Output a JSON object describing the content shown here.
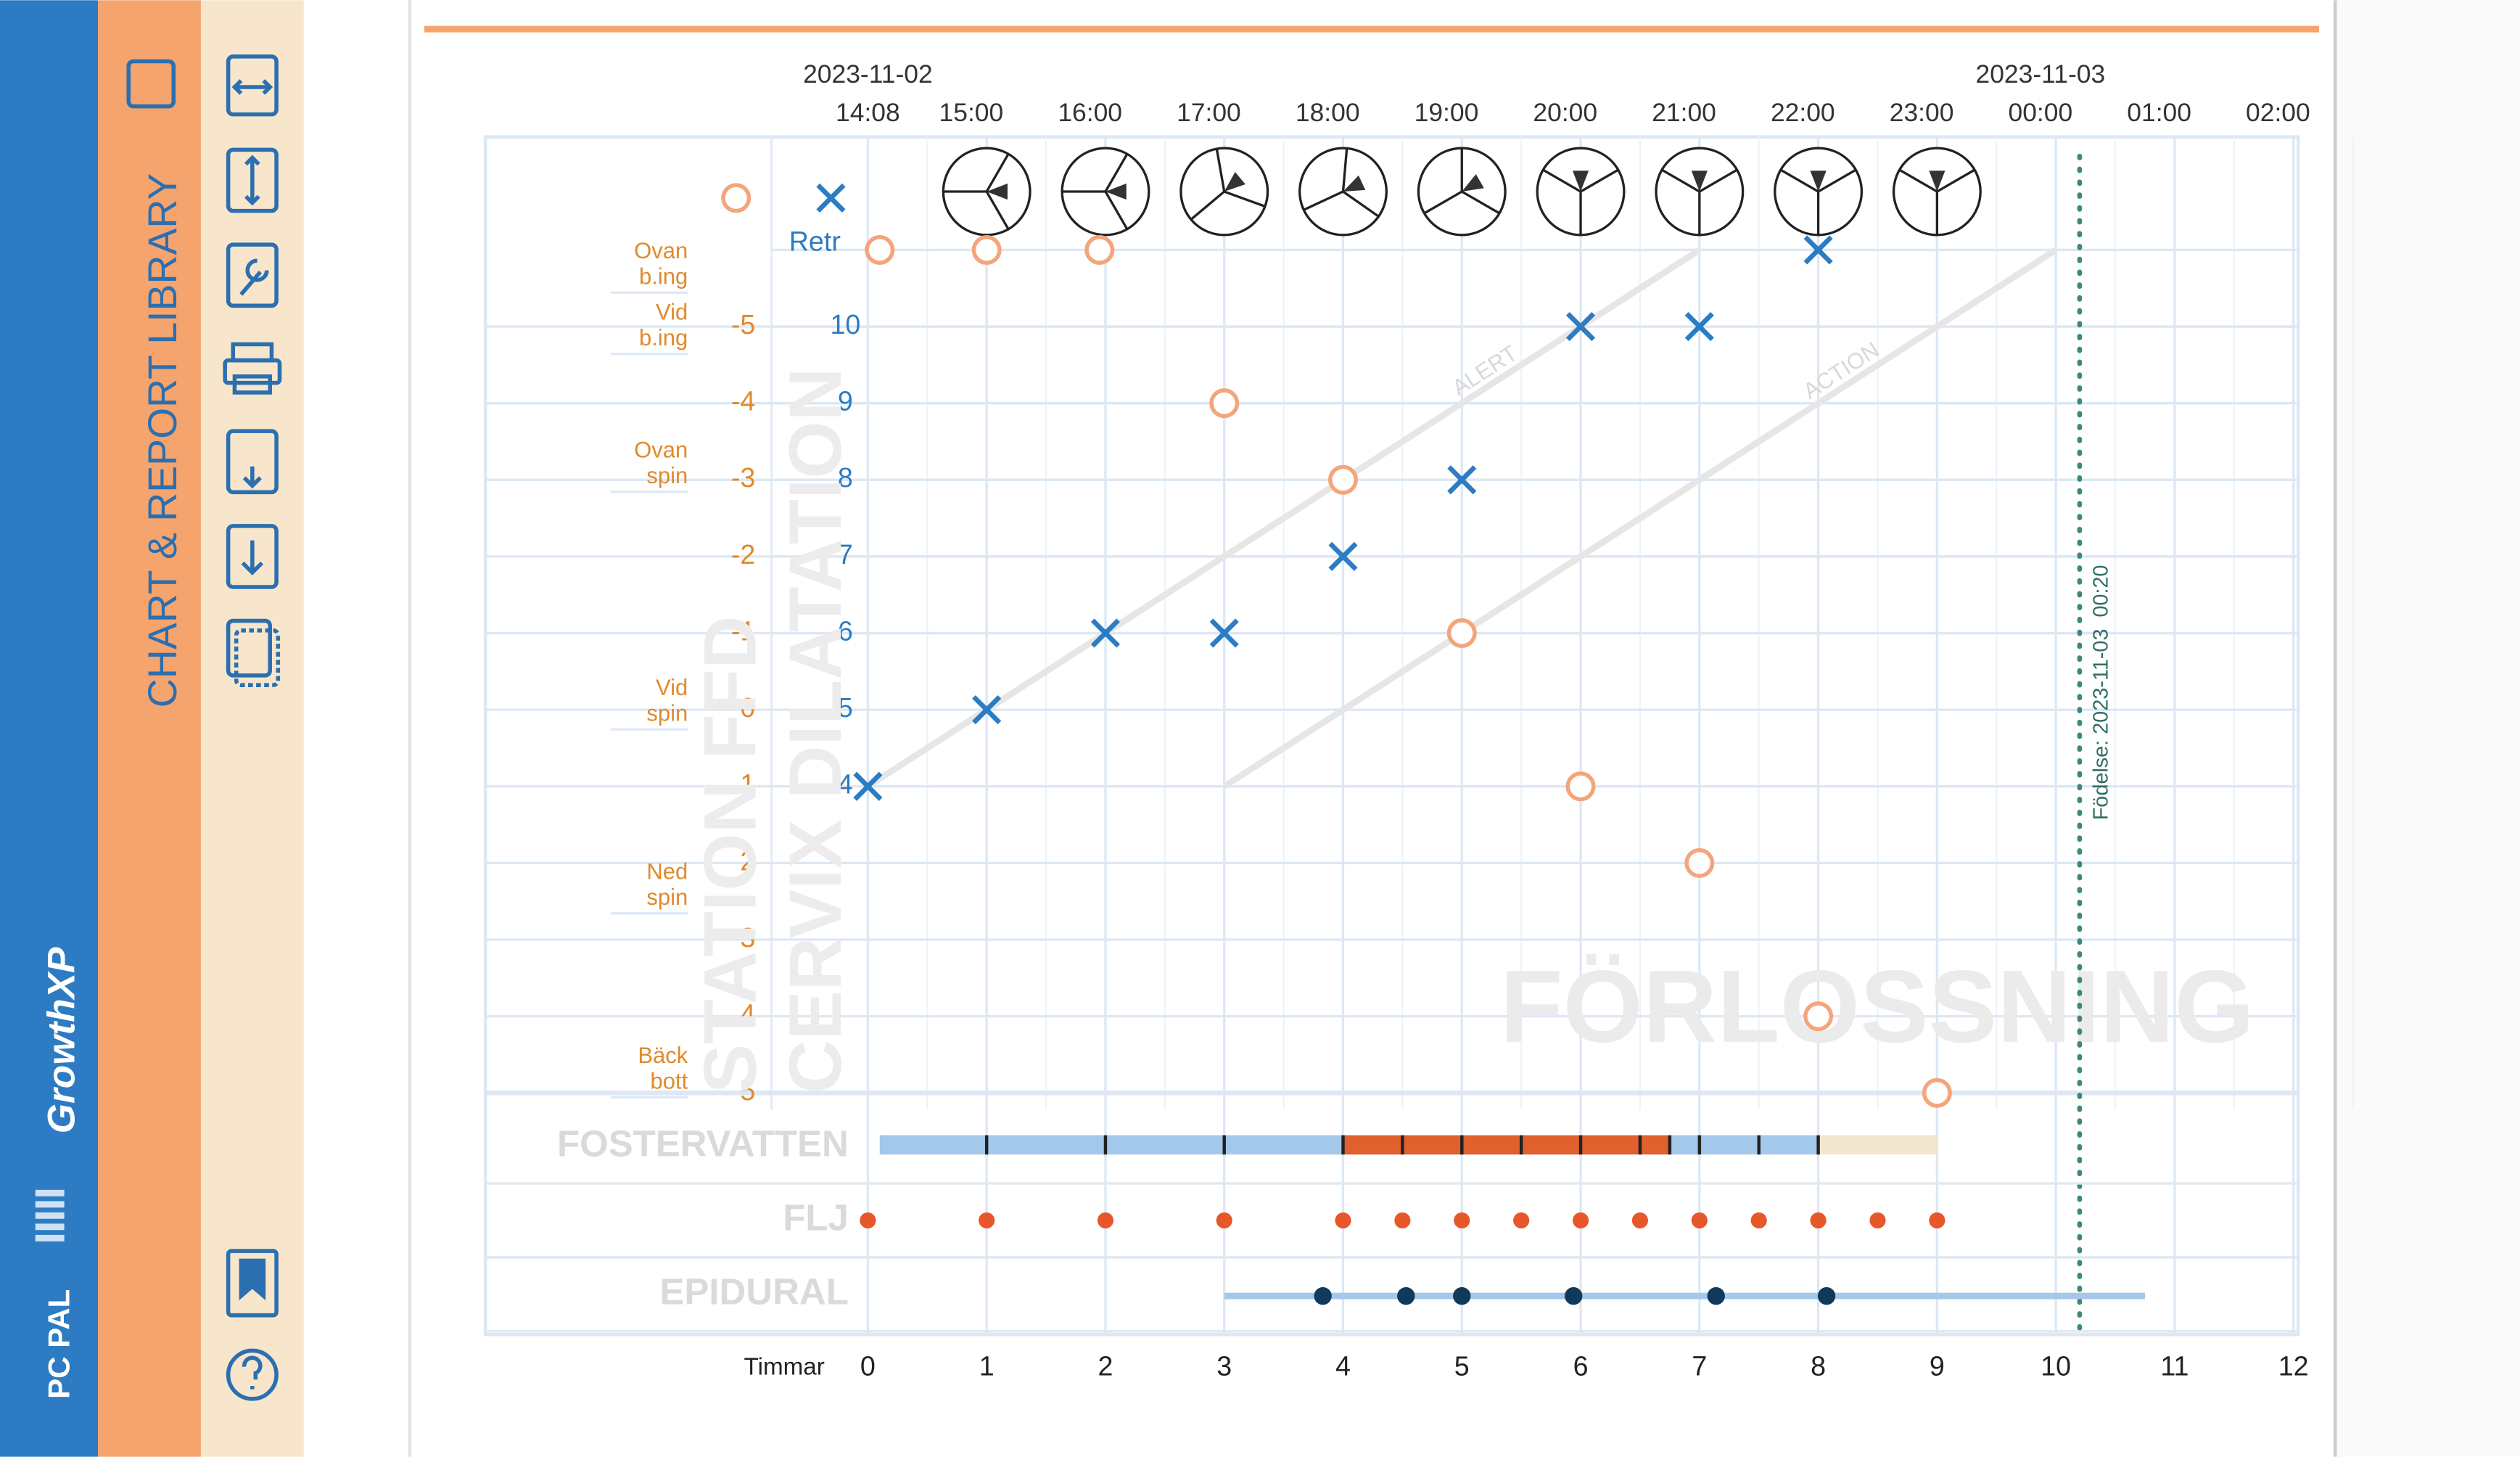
{
  "sidebar": {
    "brand": "PC PAL",
    "product": "GrowthXP",
    "title": "CHART & REPORT LIBRARY"
  },
  "chart": {
    "dates": [
      {
        "label": "2023-11-02",
        "hour": 0
      },
      {
        "label": "2023-11-03",
        "hour": 9.87
      }
    ],
    "times": [
      {
        "label": "14:08",
        "hour": 0
      },
      {
        "label": "15:00",
        "hour": 0.87
      },
      {
        "label": "16:00",
        "hour": 1.87
      },
      {
        "label": "17:00",
        "hour": 2.87
      },
      {
        "label": "18:00",
        "hour": 3.87
      },
      {
        "label": "19:00",
        "hour": 4.87
      },
      {
        "label": "20:00",
        "hour": 5.87
      },
      {
        "label": "21:00",
        "hour": 6.87
      },
      {
        "label": "22:00",
        "hour": 7.87
      },
      {
        "label": "23:00",
        "hour": 8.87
      },
      {
        "label": "00:00",
        "hour": 9.87
      },
      {
        "label": "01:00",
        "hour": 10.87
      },
      {
        "label": "02:00",
        "hour": 11.87
      }
    ],
    "hours_label": "Timmar",
    "hours": [
      0,
      1,
      2,
      3,
      4,
      5,
      6,
      7,
      8,
      9,
      10,
      11,
      12
    ],
    "dilation_ticks": [
      {
        "value": 11,
        "label": "Retr"
      },
      10,
      9,
      8,
      7,
      6,
      5,
      4
    ],
    "station_ticks": [
      -5,
      -4,
      -3,
      -2,
      -1,
      0,
      1,
      2,
      3,
      4,
      5
    ],
    "station_zones": [
      {
        "lines": [
          "Ovan",
          "b.ing"
        ],
        "station": -5.8
      },
      {
        "lines": [
          "Vid",
          "b.ing"
        ],
        "station": -5
      },
      {
        "lines": [
          "Ovan",
          "spin"
        ],
        "station": -3.2
      },
      {
        "lines": [
          "Vid",
          "spin"
        ],
        "station": -0.1
      },
      {
        "lines": [
          "Ned",
          "spin"
        ],
        "station": 2.3
      },
      {
        "lines": [
          "Bäck",
          "bott"
        ],
        "station": 4.7
      }
    ],
    "watermarks": [
      "STATION FFD",
      "CERVIX DILATATION",
      "FÖRLOSSNING"
    ],
    "alert": {
      "label": "ALERT",
      "from": [
        0,
        4
      ],
      "to": [
        7,
        11
      ]
    },
    "action": {
      "label": "ACTION",
      "from": [
        3,
        4
      ],
      "to": [
        10,
        11
      ]
    },
    "fetal_position": [
      {
        "hour": 1,
        "angle": 0
      },
      {
        "hour": 2,
        "angle": 0
      },
      {
        "hour": 3,
        "angle": -40
      },
      {
        "hour": 4,
        "angle": -25
      },
      {
        "hour": 5,
        "angle": -30
      },
      {
        "hour": 6,
        "angle": -90
      },
      {
        "hour": 7,
        "angle": -90
      },
      {
        "hour": 8,
        "angle": -90
      },
      {
        "hour": 9,
        "angle": -90
      }
    ],
    "dilation": [
      {
        "hour": 0,
        "value": 4
      },
      {
        "hour": 1,
        "value": 5
      },
      {
        "hour": 2,
        "value": 6
      },
      {
        "hour": 3,
        "value": 6
      },
      {
        "hour": 4,
        "value": 7
      },
      {
        "hour": 5,
        "value": 8
      },
      {
        "hour": 6,
        "value": 10
      },
      {
        "hour": 7,
        "value": 10
      },
      {
        "hour": 8,
        "value": 11
      }
    ],
    "station": [
      {
        "hour": 0.1,
        "value": -6
      },
      {
        "hour": 1,
        "value": -6
      },
      {
        "hour": 1.95,
        "value": -6
      },
      {
        "hour": 3,
        "value": -4
      },
      {
        "hour": 4,
        "value": -3
      },
      {
        "hour": 5,
        "value": -1
      },
      {
        "hour": 6,
        "value": 1
      },
      {
        "hour": 7,
        "value": 2
      },
      {
        "hour": 8,
        "value": 4
      },
      {
        "hour": 9,
        "value": 5
      }
    ],
    "birth": {
      "label": "Födelse: 2023-11-03  00:20",
      "hour": 10.2
    },
    "fostervatten": {
      "label": "FOSTERVATTEN",
      "segments": [
        {
          "from": 0.1,
          "to": 4,
          "color": "#a3c8ea"
        },
        {
          "from": 4,
          "to": 6.75,
          "color": "#e0602e"
        },
        {
          "from": 6.75,
          "to": 8,
          "color": "#a3c8ea"
        },
        {
          "from": 8,
          "to": 9,
          "color": "#f3e6cf"
        }
      ],
      "ticks": [
        1,
        2,
        3,
        4,
        4.5,
        5,
        5.5,
        6,
        6.5,
        6.75,
        7,
        7.5,
        8
      ]
    },
    "flj": {
      "label": "FLJ",
      "hours": [
        0,
        1,
        2,
        3,
        4,
        4.5,
        5,
        5.5,
        6,
        6.5,
        7,
        7.5,
        8,
        8.5,
        9
      ]
    },
    "epidural": {
      "label": "EPIDURAL",
      "from": 3,
      "to": 10.75,
      "hours": [
        3.83,
        4.53,
        5,
        5.94,
        7.14,
        8.07
      ]
    }
  }
}
